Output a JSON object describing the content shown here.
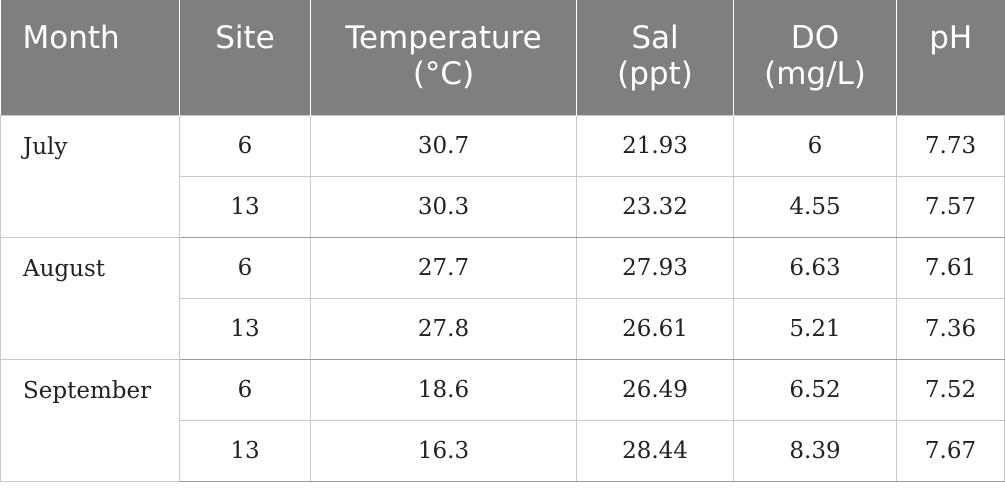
{
  "header": {
    "month": "Month",
    "site": "Site",
    "temperature": [
      "Temperature",
      "(°C)"
    ],
    "sal": [
      "Sal",
      "(ppt)"
    ],
    "do": [
      "DO",
      "(mg/L)"
    ],
    "ph": "pH"
  },
  "groups": [
    {
      "month": "July",
      "rows": [
        {
          "site": "6",
          "temperature": "30.7",
          "sal": "21.93",
          "do": "6",
          "ph": "7.73"
        },
        {
          "site": "13",
          "temperature": "30.3",
          "sal": "23.32",
          "do": "4.55",
          "ph": "7.57"
        }
      ]
    },
    {
      "month": "August",
      "rows": [
        {
          "site": "6",
          "temperature": "27.7",
          "sal": "27.93",
          "do": "6.63",
          "ph": "7.61"
        },
        {
          "site": "13",
          "temperature": "27.8",
          "sal": "26.61",
          "do": "5.21",
          "ph": "7.36"
        }
      ]
    },
    {
      "month": "September",
      "rows": [
        {
          "site": "6",
          "temperature": "18.6",
          "sal": "26.49",
          "do": "6.52",
          "ph": "7.52"
        },
        {
          "site": "13",
          "temperature": "16.3",
          "sal": "28.44",
          "do": "8.39",
          "ph": "7.67"
        }
      ]
    }
  ]
}
